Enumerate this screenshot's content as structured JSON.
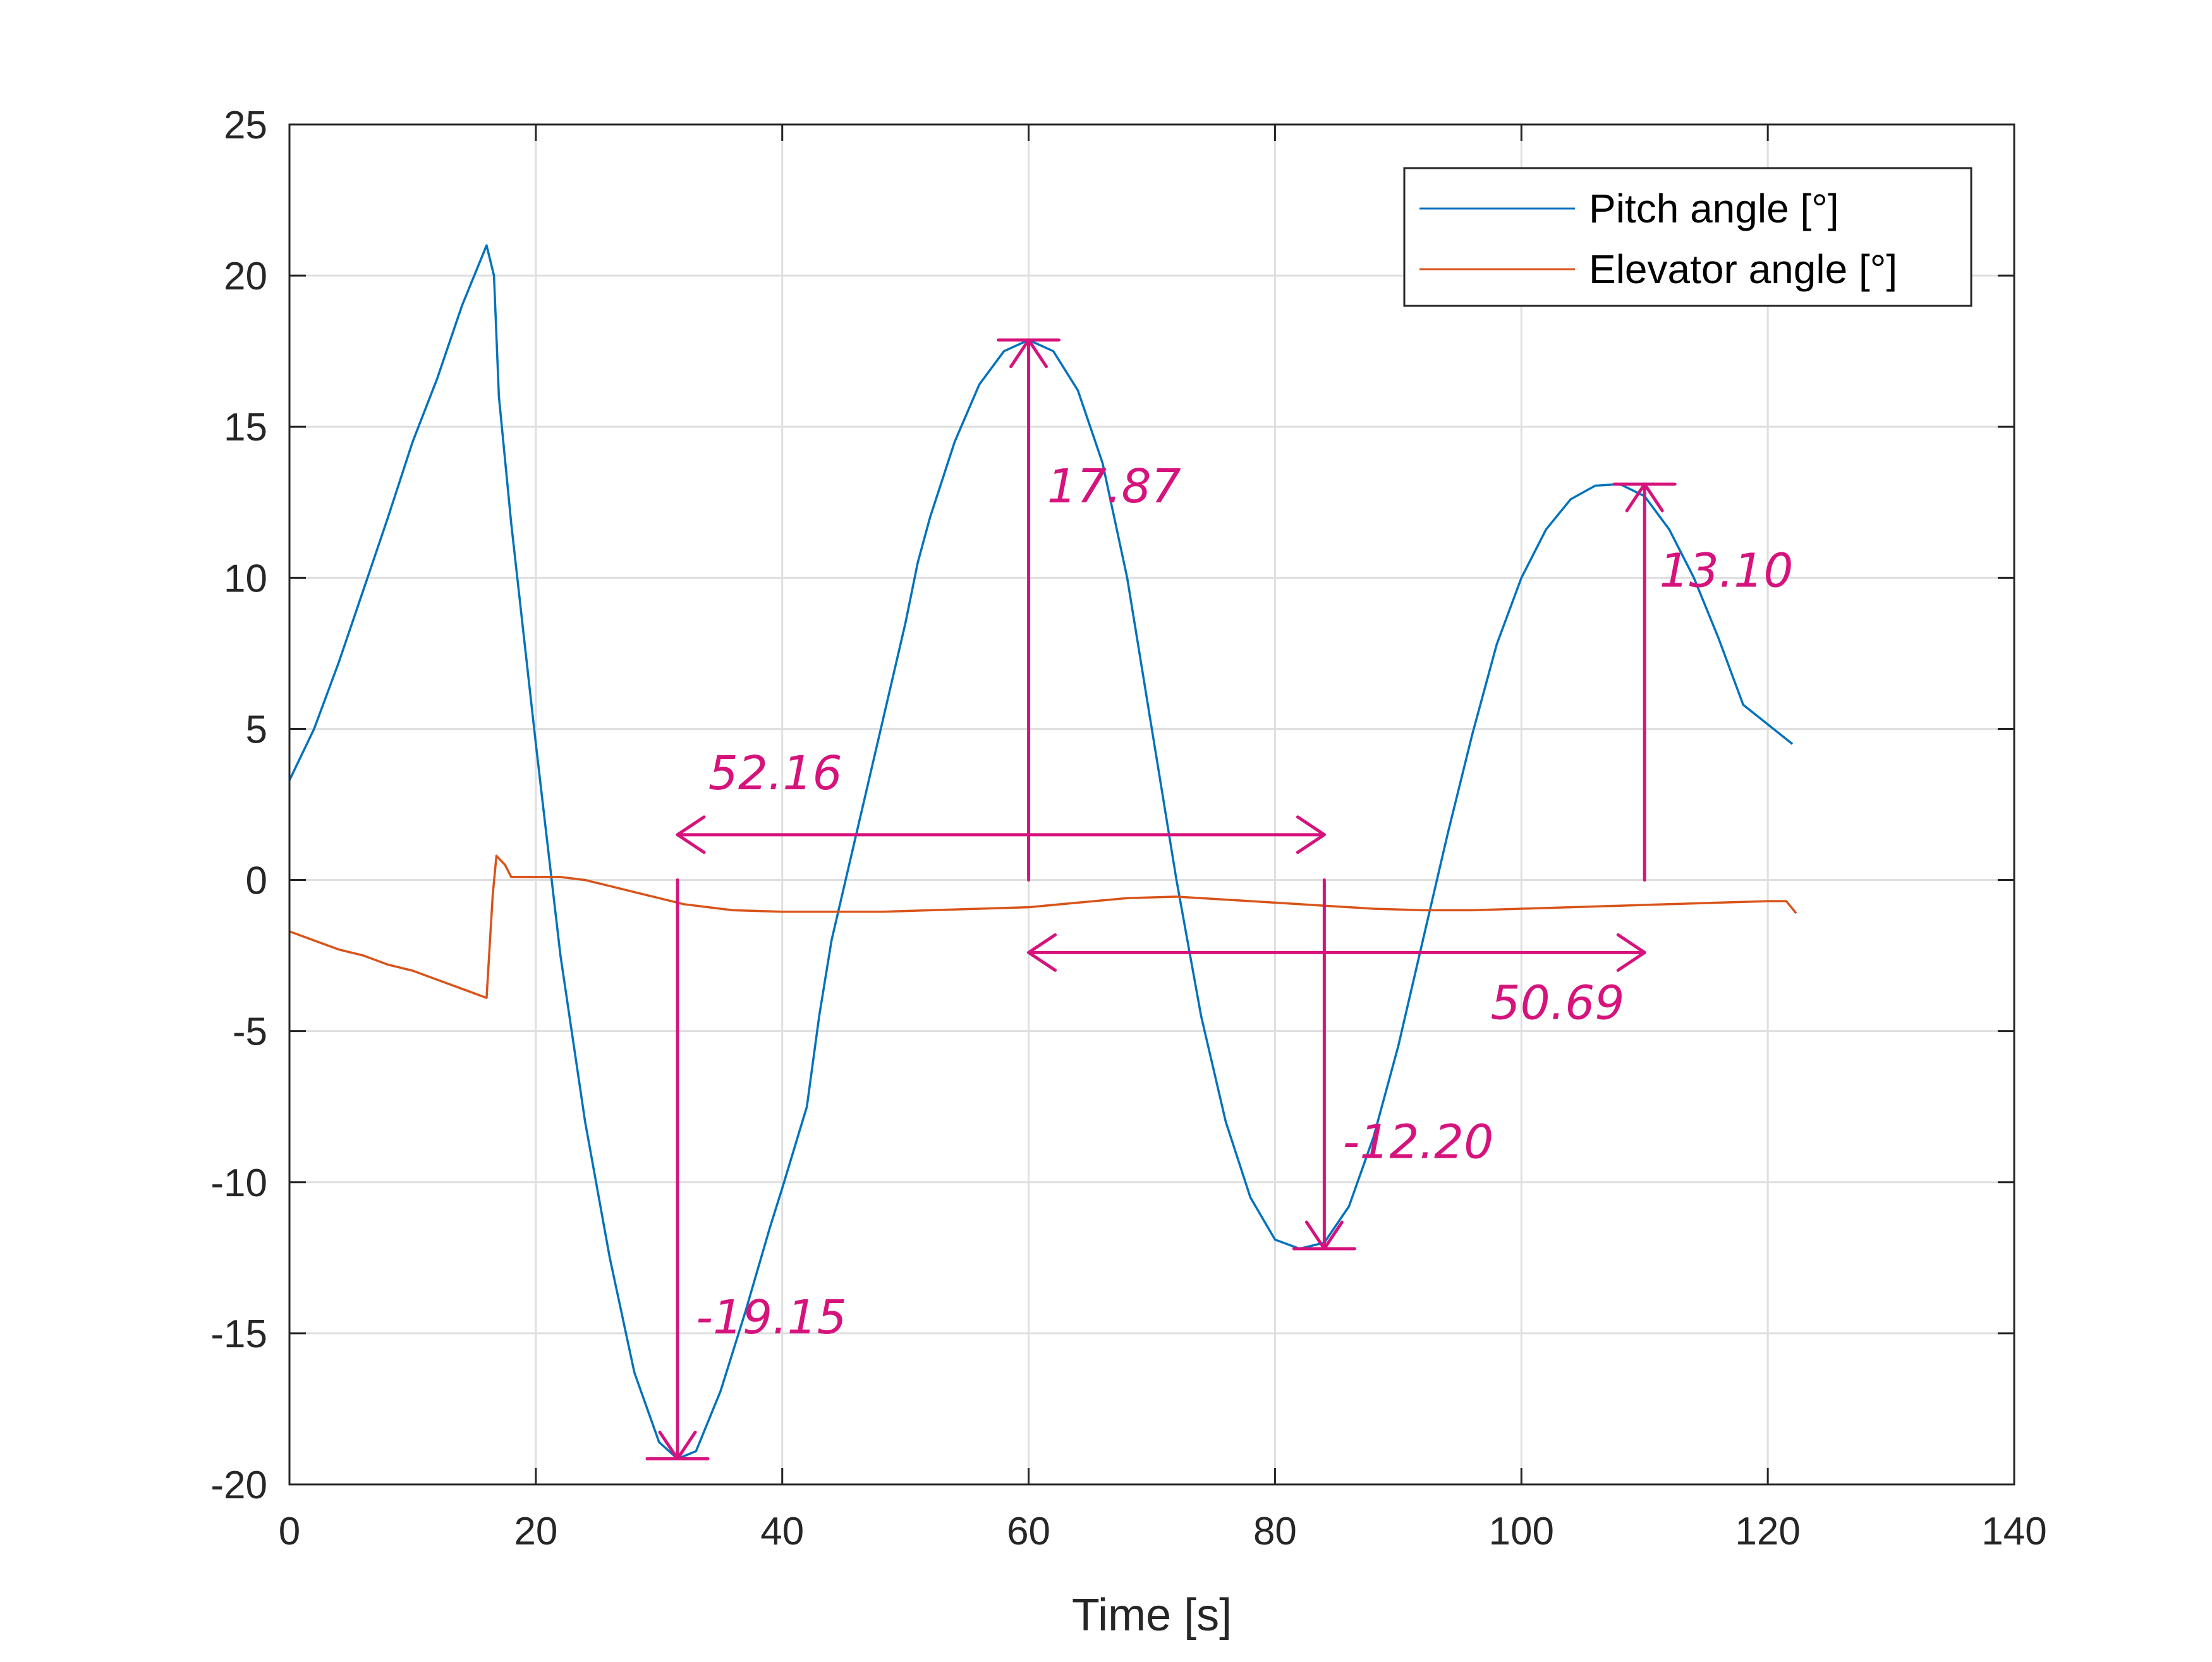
{
  "chart_data": {
    "type": "line",
    "xlabel": "Time [s]",
    "ylabel": "",
    "xlim": [
      0,
      140
    ],
    "ylim": [
      -20,
      25
    ],
    "xticks": [
      0,
      20,
      40,
      60,
      80,
      100,
      120,
      140
    ],
    "yticks": [
      -20,
      -15,
      -10,
      -5,
      0,
      5,
      10,
      15,
      20,
      25
    ],
    "xtick_labels": [
      "0",
      "20",
      "40",
      "60",
      "80",
      "100",
      "120",
      "140"
    ],
    "ytick_labels": [
      "-20",
      "-15",
      "-10",
      "-5",
      "0",
      "5",
      "10",
      "15",
      "20",
      "25"
    ],
    "grid": true,
    "legend_position": "top-right",
    "series": [
      {
        "name": "Pitch angle [°]",
        "color": "#0072BD",
        "points": [
          [
            0,
            3.3
          ],
          [
            2,
            5.0
          ],
          [
            4,
            7.2
          ],
          [
            6,
            9.6
          ],
          [
            8,
            12.0
          ],
          [
            10,
            14.5
          ],
          [
            12,
            16.6
          ],
          [
            14,
            19.0
          ],
          [
            16,
            21.0
          ],
          [
            16.6,
            20.0
          ],
          [
            17,
            16.0
          ],
          [
            18,
            11.8
          ],
          [
            20,
            4.5
          ],
          [
            22,
            -2.5
          ],
          [
            24,
            -8.0
          ],
          [
            26,
            -12.5
          ],
          [
            28,
            -16.3
          ],
          [
            30,
            -18.6
          ],
          [
            31.5,
            -19.15
          ],
          [
            33,
            -18.9
          ],
          [
            35,
            -16.9
          ],
          [
            37,
            -14.3
          ],
          [
            39,
            -11.5
          ],
          [
            40,
            -10.2
          ],
          [
            42,
            -7.5
          ],
          [
            43,
            -4.5
          ],
          [
            44,
            -2.0
          ],
          [
            46,
            1.5
          ],
          [
            48,
            5.0
          ],
          [
            50,
            8.5
          ],
          [
            51,
            10.5
          ],
          [
            52,
            12.0
          ],
          [
            54,
            14.5
          ],
          [
            56,
            16.4
          ],
          [
            58,
            17.5
          ],
          [
            60,
            17.87
          ],
          [
            62,
            17.5
          ],
          [
            64,
            16.2
          ],
          [
            66,
            13.8
          ],
          [
            68,
            10.0
          ],
          [
            70,
            5.0
          ],
          [
            72,
            0.0
          ],
          [
            74,
            -4.5
          ],
          [
            76,
            -8.0
          ],
          [
            78,
            -10.5
          ],
          [
            80,
            -11.9
          ],
          [
            82,
            -12.2
          ],
          [
            84,
            -12.0
          ],
          [
            86,
            -10.8
          ],
          [
            88,
            -8.5
          ],
          [
            90,
            -5.5
          ],
          [
            92,
            -2.0
          ],
          [
            94,
            1.5
          ],
          [
            96,
            4.8
          ],
          [
            98,
            7.8
          ],
          [
            100,
            10.0
          ],
          [
            102,
            11.6
          ],
          [
            104,
            12.6
          ],
          [
            106,
            13.05
          ],
          [
            108,
            13.1
          ],
          [
            110,
            12.7
          ],
          [
            112,
            11.6
          ],
          [
            114,
            10.0
          ],
          [
            116,
            8.0
          ],
          [
            118,
            5.8
          ],
          [
            122,
            4.5
          ]
        ]
      },
      {
        "name": "Elevator angle [°]",
        "color": "#D95319",
        "points": [
          [
            0,
            -1.7
          ],
          [
            2,
            -2.0
          ],
          [
            4,
            -2.3
          ],
          [
            6,
            -2.5
          ],
          [
            8,
            -2.8
          ],
          [
            10,
            -3.0
          ],
          [
            12,
            -3.3
          ],
          [
            14,
            -3.6
          ],
          [
            16,
            -3.9
          ],
          [
            16.5,
            -0.5
          ],
          [
            16.8,
            0.8
          ],
          [
            17.5,
            0.5
          ],
          [
            18,
            0.1
          ],
          [
            20,
            0.1
          ],
          [
            22,
            0.1
          ],
          [
            24,
            0.0
          ],
          [
            26,
            -0.2
          ],
          [
            28,
            -0.4
          ],
          [
            30,
            -0.6
          ],
          [
            32,
            -0.8
          ],
          [
            34,
            -0.9
          ],
          [
            36,
            -1.0
          ],
          [
            40,
            -1.05
          ],
          [
            44,
            -1.05
          ],
          [
            48,
            -1.05
          ],
          [
            52,
            -1.0
          ],
          [
            56,
            -0.95
          ],
          [
            60,
            -0.9
          ],
          [
            64,
            -0.75
          ],
          [
            68,
            -0.6
          ],
          [
            72,
            -0.55
          ],
          [
            76,
            -0.65
          ],
          [
            80,
            -0.75
          ],
          [
            84,
            -0.85
          ],
          [
            88,
            -0.95
          ],
          [
            92,
            -1.0
          ],
          [
            96,
            -1.0
          ],
          [
            100,
            -0.95
          ],
          [
            104,
            -0.9
          ],
          [
            108,
            -0.85
          ],
          [
            112,
            -0.8
          ],
          [
            116,
            -0.75
          ],
          [
            120,
            -0.7
          ],
          [
            121.5,
            -0.7
          ],
          [
            122.3,
            -1.1
          ]
        ]
      }
    ],
    "annotations": {
      "color": "#D6137C",
      "vertical_arrows": [
        {
          "x": 31.5,
          "from": 0,
          "to": -19.15,
          "label": "-19.15",
          "label_at": [
            33,
            -15
          ]
        },
        {
          "x": 60,
          "from": 0,
          "to": 17.87,
          "label": "17.87",
          "label_at": [
            61.5,
            12.5
          ]
        },
        {
          "x": 84,
          "from": 0,
          "to": -12.2,
          "label": "-12.20",
          "label_at": [
            85.5,
            -9.2
          ]
        },
        {
          "x": 110,
          "from": 0,
          "to": 13.1,
          "label": "13.10",
          "label_at": [
            111.2,
            9.7
          ]
        }
      ],
      "horizontal_arrows": [
        {
          "y": 1.5,
          "from": 31.5,
          "to": 84,
          "label": "52.16",
          "label_at": [
            34,
            3.0
          ]
        },
        {
          "y": -2.4,
          "from": 60,
          "to": 110,
          "label": "50.69",
          "label_at": [
            97.5,
            -4.6
          ]
        }
      ],
      "ticks": [
        {
          "x": 31.5,
          "y": -19.15
        },
        {
          "x": 60,
          "y": 17.87
        },
        {
          "x": 84,
          "y": -12.2
        },
        {
          "x": 110,
          "y": 13.1
        }
      ]
    }
  }
}
